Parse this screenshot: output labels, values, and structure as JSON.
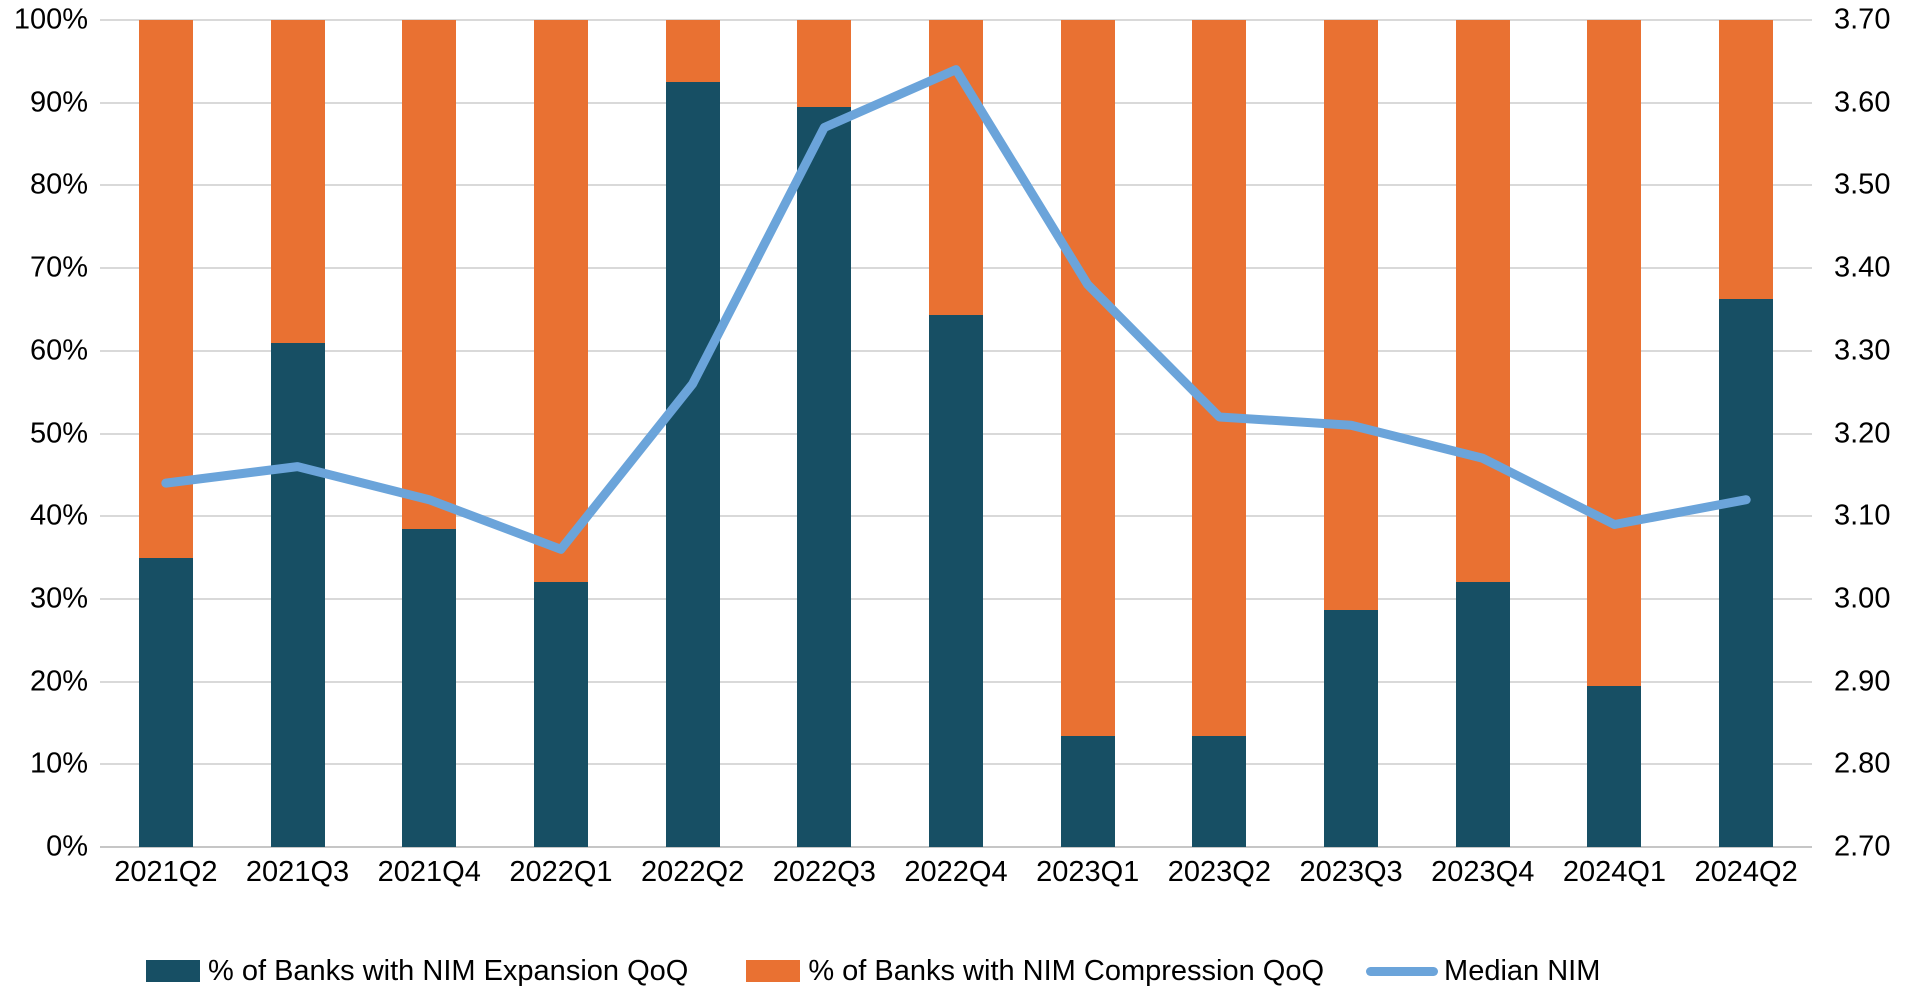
{
  "chart_data": {
    "type": "bar",
    "subtype": "stacked-bar-with-line",
    "categories": [
      "2021Q2",
      "2021Q3",
      "2021Q4",
      "2022Q1",
      "2022Q2",
      "2022Q3",
      "2022Q4",
      "2023Q1",
      "2023Q2",
      "2023Q3",
      "2023Q4",
      "2024Q1",
      "2024Q2"
    ],
    "series": [
      {
        "name": "% of Banks with NIM Expansion QoQ",
        "type": "bar",
        "axis": "left",
        "color": "#174F64",
        "values": [
          35,
          61,
          38.5,
          32,
          92.5,
          89.5,
          64.3,
          13.4,
          13.4,
          28.6,
          32,
          19.5,
          66.3
        ]
      },
      {
        "name": "% of Banks with NIM Compression QoQ",
        "type": "bar",
        "axis": "left",
        "color": "#E97132",
        "values": [
          65,
          39,
          61.5,
          68,
          7.5,
          10.5,
          35.7,
          86.6,
          86.6,
          71.4,
          68,
          80.5,
          33.7
        ]
      },
      {
        "name": "Median NIM",
        "type": "line",
        "axis": "right",
        "color": "#6BA4DA",
        "values": [
          3.14,
          3.16,
          3.12,
          3.06,
          3.26,
          3.57,
          3.64,
          3.38,
          3.22,
          3.21,
          3.17,
          3.09,
          3.12
        ]
      }
    ],
    "title": "",
    "xlabel": "",
    "ylabel": "",
    "left_axis": {
      "min": 0,
      "max": 100,
      "step": 10,
      "tick_labels": [
        "0%",
        "10%",
        "20%",
        "30%",
        "40%",
        "50%",
        "60%",
        "70%",
        "80%",
        "90%",
        "100%"
      ]
    },
    "right_axis": {
      "min": 2.7,
      "max": 3.7,
      "step": 0.1,
      "tick_labels": [
        "2.70",
        "2.80",
        "2.90",
        "3.00",
        "3.10",
        "3.20",
        "3.30",
        "3.40",
        "3.50",
        "3.60",
        "3.70"
      ]
    },
    "grid": true,
    "legend_position": "bottom"
  },
  "legend": {
    "items": [
      {
        "label": "% of Banks with NIM Expansion QoQ",
        "marker": "square",
        "color": "#174F64"
      },
      {
        "label": "% of Banks with NIM Compression QoQ",
        "marker": "square",
        "color": "#E97132"
      },
      {
        "label": "Median NIM",
        "marker": "line",
        "color": "#6BA4DA"
      }
    ]
  },
  "colors": {
    "expansion_bar": "#174F64",
    "compression_bar": "#E97132",
    "median_nim_line": "#6BA4DA",
    "gridline": "#D9D9D9",
    "axis_line": "#C6C6C6",
    "text": "#000000",
    "background": "#FFFFFF"
  }
}
